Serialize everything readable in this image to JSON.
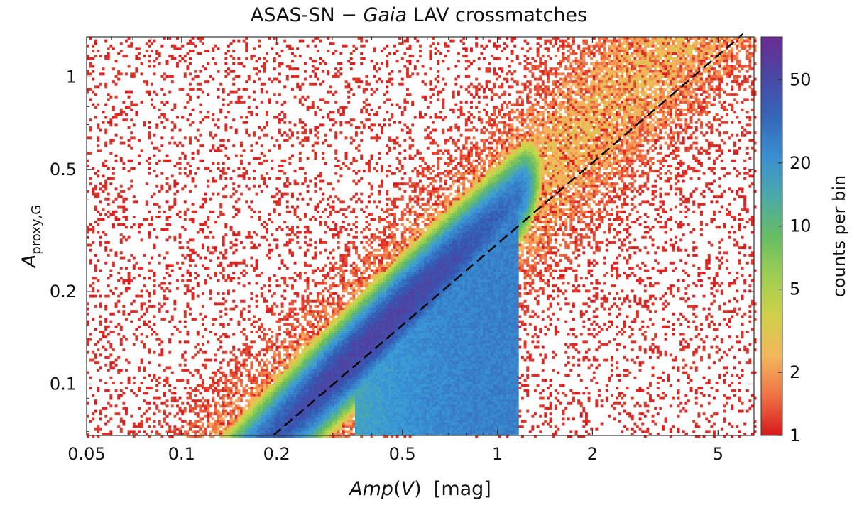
{
  "chart_data": {
    "type": "heatmap",
    "title_parts": [
      "ASAS-SN − ",
      "Gaia",
      " LAV crossmatches"
    ],
    "x_axis": {
      "label_parts": [
        "Amp",
        "(",
        "V",
        ")  [mag]"
      ],
      "scale": "log",
      "range": [
        0.05,
        6.5
      ],
      "ticks": [
        0.05,
        0.1,
        0.2,
        0.5,
        1,
        2,
        5
      ],
      "tick_labels": [
        "0.05",
        "0.1",
        "0.2",
        "0.5",
        "1",
        "2",
        "5"
      ]
    },
    "y_axis": {
      "label_parts": [
        "A",
        "proxy,G"
      ],
      "scale": "log",
      "range": [
        0.068,
        1.35
      ],
      "ticks": [
        0.1,
        0.2,
        0.5,
        1
      ],
      "tick_labels": [
        "0.1",
        "0.2",
        "0.5",
        "1"
      ]
    },
    "colorbar": {
      "label": "counts per bin",
      "scale": "log",
      "range": [
        1,
        80
      ],
      "ticks": [
        1,
        2,
        5,
        10,
        20,
        50
      ],
      "tick_labels": [
        "1",
        "2",
        "5",
        "10",
        "20",
        "50"
      ],
      "colors": [
        "#d7191c",
        "#fdae61",
        "#c5d946",
        "#66bd63",
        "#3a9bd8",
        "#3459b3",
        "#6a2c91"
      ]
    },
    "reference_line": {
      "style": "dashed",
      "color": "#000000",
      "from": [
        0.195,
        0.068
      ],
      "to": [
        6.0,
        1.38
      ]
    },
    "density_model": {
      "description": "2D histogram of log-amplitude pairs; ridge near A_proxy = 0.35 * Amp(V), peak about 55 counts near (0.42, 0.12)",
      "ridge_slope": 1.0,
      "ridge_ratio": 0.35,
      "peak_counts": 55
    }
  }
}
